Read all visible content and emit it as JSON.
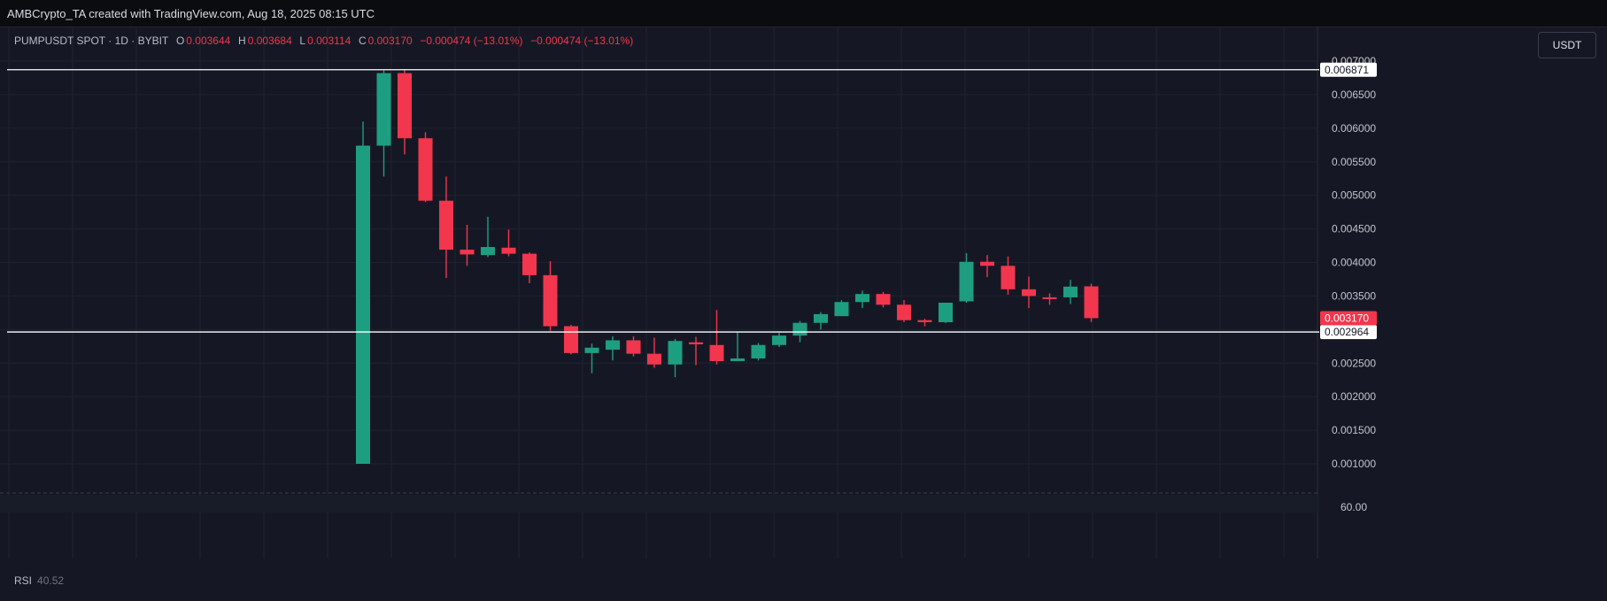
{
  "header": {
    "attribution": "AMBCrypto_TA created with TradingView.com, Aug 18, 2025 08:15 UTC"
  },
  "legend": {
    "symbol": "PUMPUSDT SPOT · 1D · BYBIT",
    "o_label": "O",
    "o_value": "0.003644",
    "h_label": "H",
    "h_value": "0.003684",
    "l_label": "L",
    "l_value": "0.003114",
    "c_label": "C",
    "c_value": "0.003170",
    "change": "−0.000474 (−13.01%)",
    "change2": "−0.000474 (−13.01%)"
  },
  "currency_button": "USDT",
  "rsi": {
    "label": "RSI",
    "value": "40.52",
    "axis_label": "60.00"
  },
  "colors": {
    "up": "#1e9e80",
    "down": "#f2364d",
    "background": "#151824",
    "hline": "#ffffff",
    "grid": "#1e2230"
  },
  "chart_data": {
    "type": "candlestick",
    "symbol": "PUMPUSDT",
    "y_axis_ticks": [
      "0.007000",
      "0.006500",
      "0.006000",
      "0.005500",
      "0.005000",
      "0.004500",
      "0.004000",
      "0.003500",
      "0.003000",
      "0.002500",
      "0.002000",
      "0.001500",
      "0.001000"
    ],
    "ylim": [
      0.00085,
      0.0071
    ],
    "horizontal_lines": [
      {
        "value": 0.006871,
        "label": "0.006871"
      },
      {
        "value": 0.002964,
        "label": "0.002964"
      }
    ],
    "last_price": {
      "value": 0.00317,
      "label": "0.003170"
    },
    "candles": [
      {
        "open": 0.001,
        "high": 0.0061,
        "low": 0.001,
        "close": 0.00574
      },
      {
        "open": 0.00574,
        "high": 0.00686,
        "low": 0.00528,
        "close": 0.00682
      },
      {
        "open": 0.00682,
        "high": 0.00688,
        "low": 0.00561,
        "close": 0.00585
      },
      {
        "open": 0.00585,
        "high": 0.00594,
        "low": 0.0049,
        "close": 0.00492
      },
      {
        "open": 0.00492,
        "high": 0.00528,
        "low": 0.00377,
        "close": 0.00419
      },
      {
        "open": 0.00419,
        "high": 0.00456,
        "low": 0.00395,
        "close": 0.00412
      },
      {
        "open": 0.00411,
        "high": 0.00468,
        "low": 0.00408,
        "close": 0.00423
      },
      {
        "open": 0.00422,
        "high": 0.00449,
        "low": 0.00409,
        "close": 0.00413
      },
      {
        "open": 0.00413,
        "high": 0.00415,
        "low": 0.00369,
        "close": 0.00381
      },
      {
        "open": 0.00381,
        "high": 0.00402,
        "low": 0.00298,
        "close": 0.00305
      },
      {
        "open": 0.00305,
        "high": 0.00307,
        "low": 0.00263,
        "close": 0.00265
      },
      {
        "open": 0.00265,
        "high": 0.00279,
        "low": 0.00235,
        "close": 0.00273
      },
      {
        "open": 0.0027,
        "high": 0.0029,
        "low": 0.00254,
        "close": 0.00284
      },
      {
        "open": 0.00284,
        "high": 0.0029,
        "low": 0.0026,
        "close": 0.00264
      },
      {
        "open": 0.00264,
        "high": 0.00288,
        "low": 0.00243,
        "close": 0.00248
      },
      {
        "open": 0.00248,
        "high": 0.00286,
        "low": 0.00229,
        "close": 0.00283
      },
      {
        "open": 0.00281,
        "high": 0.00289,
        "low": 0.00247,
        "close": 0.00278
      },
      {
        "open": 0.00277,
        "high": 0.00329,
        "low": 0.00248,
        "close": 0.00253
      },
      {
        "open": 0.00253,
        "high": 0.00297,
        "low": 0.00253,
        "close": 0.00257
      },
      {
        "open": 0.00257,
        "high": 0.0028,
        "low": 0.00254,
        "close": 0.00277
      },
      {
        "open": 0.00277,
        "high": 0.00295,
        "low": 0.00274,
        "close": 0.00291
      },
      {
        "open": 0.00291,
        "high": 0.00313,
        "low": 0.00281,
        "close": 0.0031
      },
      {
        "open": 0.0031,
        "high": 0.00326,
        "low": 0.003,
        "close": 0.00323
      },
      {
        "open": 0.0032,
        "high": 0.00344,
        "low": 0.00321,
        "close": 0.00341
      },
      {
        "open": 0.00341,
        "high": 0.00358,
        "low": 0.00332,
        "close": 0.00353
      },
      {
        "open": 0.00353,
        "high": 0.00356,
        "low": 0.00333,
        "close": 0.00337
      },
      {
        "open": 0.00337,
        "high": 0.00344,
        "low": 0.00311,
        "close": 0.00314
      },
      {
        "open": 0.00314,
        "high": 0.00316,
        "low": 0.00305,
        "close": 0.00311
      },
      {
        "open": 0.00311,
        "high": 0.0034,
        "low": 0.0031,
        "close": 0.0034
      },
      {
        "open": 0.00342,
        "high": 0.00414,
        "low": 0.0034,
        "close": 0.00401
      },
      {
        "open": 0.00401,
        "high": 0.00411,
        "low": 0.00378,
        "close": 0.00395
      },
      {
        "open": 0.00395,
        "high": 0.00409,
        "low": 0.00352,
        "close": 0.0036
      },
      {
        "open": 0.0036,
        "high": 0.00379,
        "low": 0.00332,
        "close": 0.0035
      },
      {
        "open": 0.00348,
        "high": 0.00354,
        "low": 0.00337,
        "close": 0.00347
      },
      {
        "open": 0.00348,
        "high": 0.00374,
        "low": 0.00338,
        "close": 0.00364
      },
      {
        "open": 0.003644,
        "high": 0.003684,
        "low": 0.003114,
        "close": 0.00317
      }
    ],
    "indicator": {
      "name": "RSI",
      "value": 40.52
    }
  }
}
